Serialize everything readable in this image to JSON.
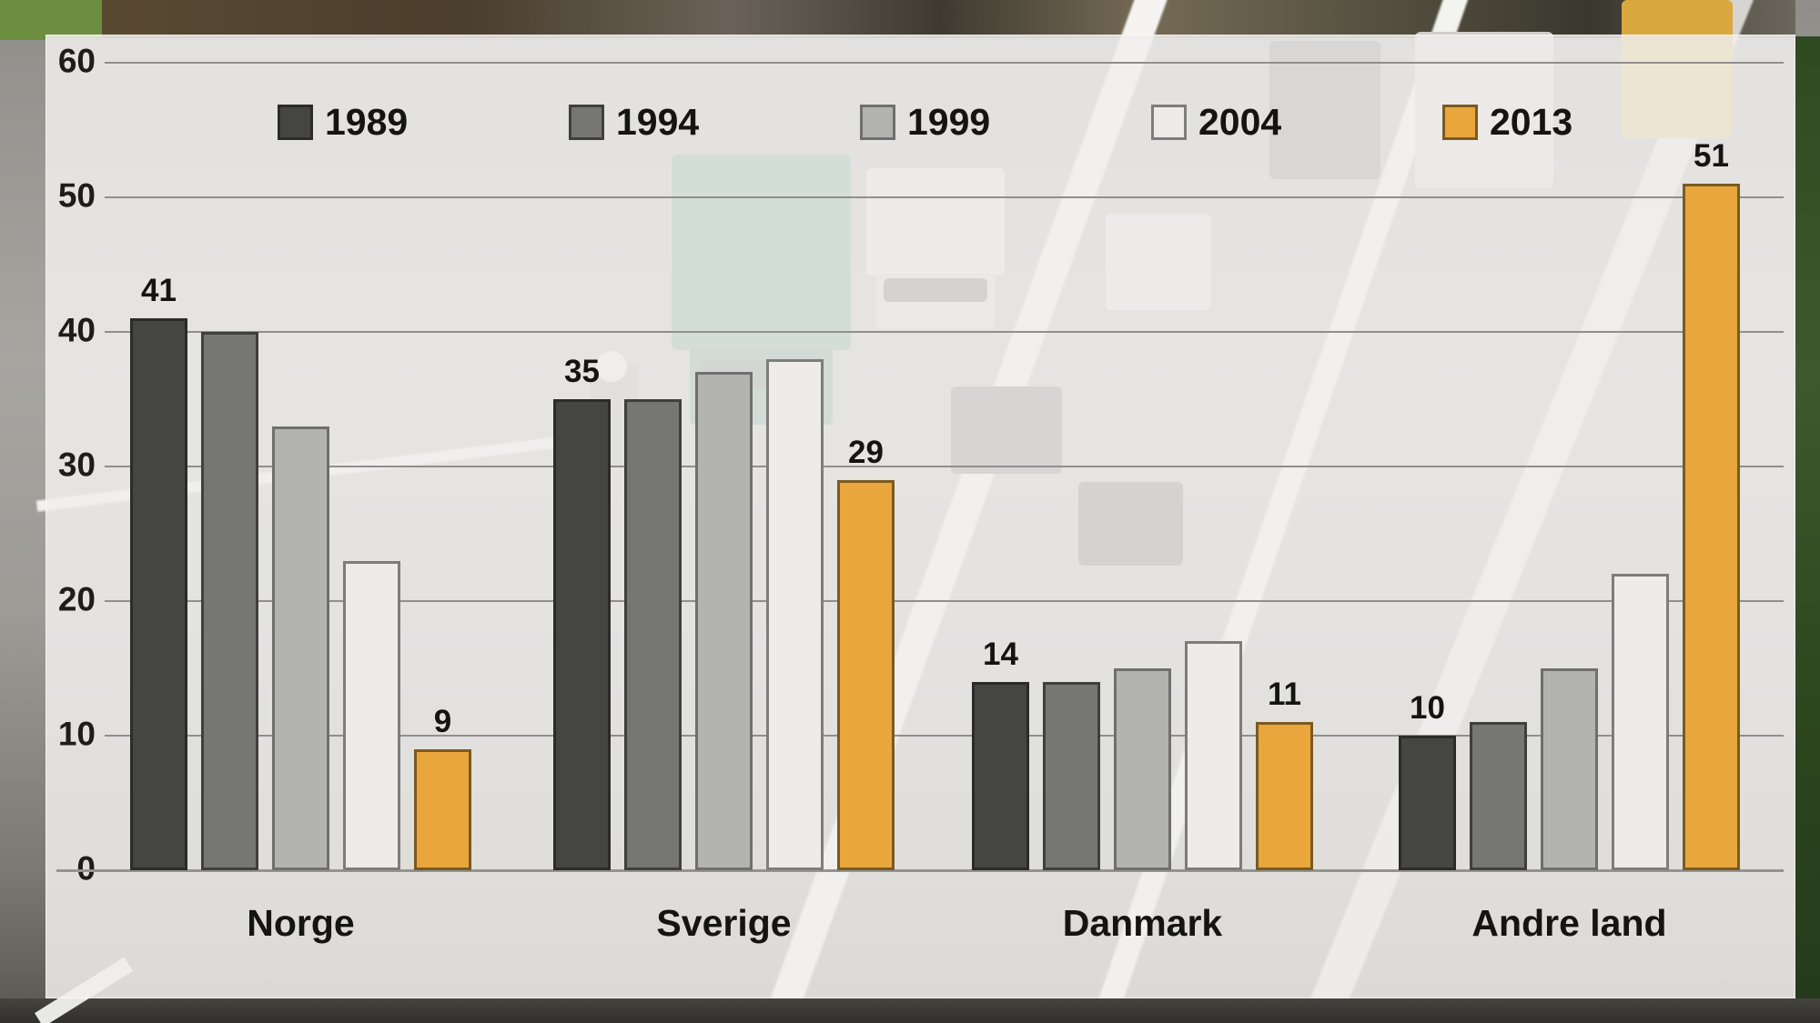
{
  "chart_data": {
    "type": "bar",
    "title": "",
    "categories": [
      "Norge",
      "Sverige",
      "Danmark",
      "Andre land"
    ],
    "series": [
      {
        "name": "1989",
        "values": [
          41,
          35,
          14,
          10
        ],
        "color": "#454542",
        "border": "#2b2b29"
      },
      {
        "name": "1994",
        "values": [
          40,
          35,
          14,
          11
        ],
        "color": "#767673",
        "border": "#3f3f3d"
      },
      {
        "name": "1999",
        "values": [
          33,
          37,
          15,
          15
        ],
        "color": "#b3b3b0",
        "border": "#6f6f6d"
      },
      {
        "name": "2004",
        "values": [
          23,
          38,
          17,
          22
        ],
        "color": "#edece9",
        "border": "#7d7d7b"
      },
      {
        "name": "2013",
        "values": [
          9,
          29,
          11,
          51
        ],
        "color": "#e8a63d",
        "border": "#7a5a22"
      }
    ],
    "labeled_series": [
      "1989",
      "2013"
    ],
    "xlabel": "",
    "ylabel": "",
    "ylim": [
      0,
      60
    ],
    "yticks": [
      0,
      10,
      20,
      30,
      40,
      50,
      60
    ],
    "grid": true,
    "legend_position": "top",
    "accent_color": "#e8a63d",
    "text_color": "#141412",
    "gridline_color": "#8f8f8d"
  }
}
